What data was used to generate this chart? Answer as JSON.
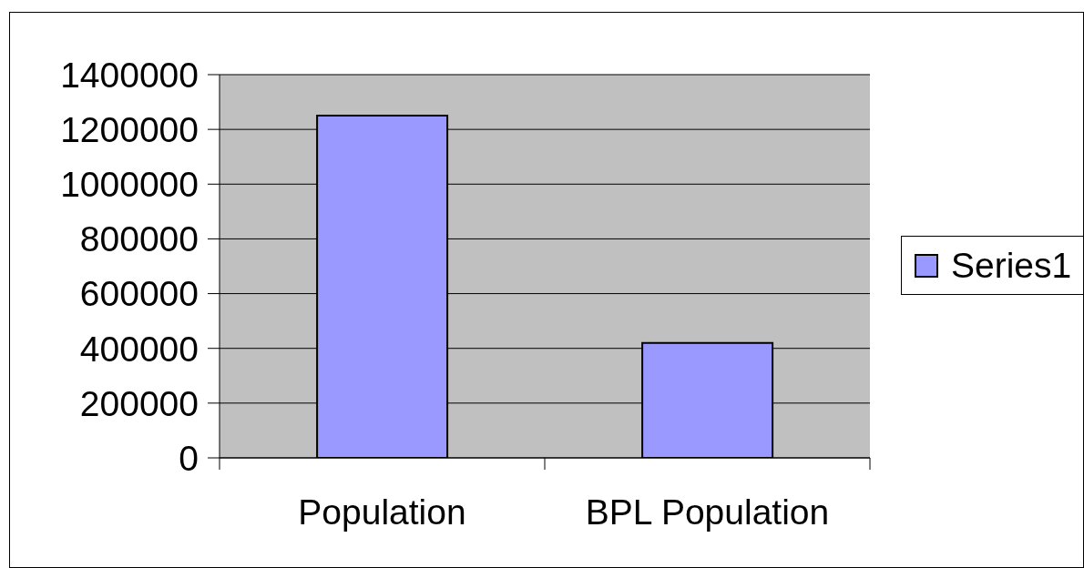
{
  "chart_data": {
    "type": "bar",
    "categories": [
      "Population",
      "BPL Population"
    ],
    "series": [
      {
        "name": "Series1",
        "color": "#9999ff",
        "values": [
          1250000,
          420000
        ]
      }
    ],
    "ylim": [
      0,
      1400000
    ],
    "yticks": [
      0,
      200000,
      400000,
      600000,
      800000,
      1000000,
      1200000,
      1400000
    ],
    "grid": "y",
    "legend": "right"
  }
}
